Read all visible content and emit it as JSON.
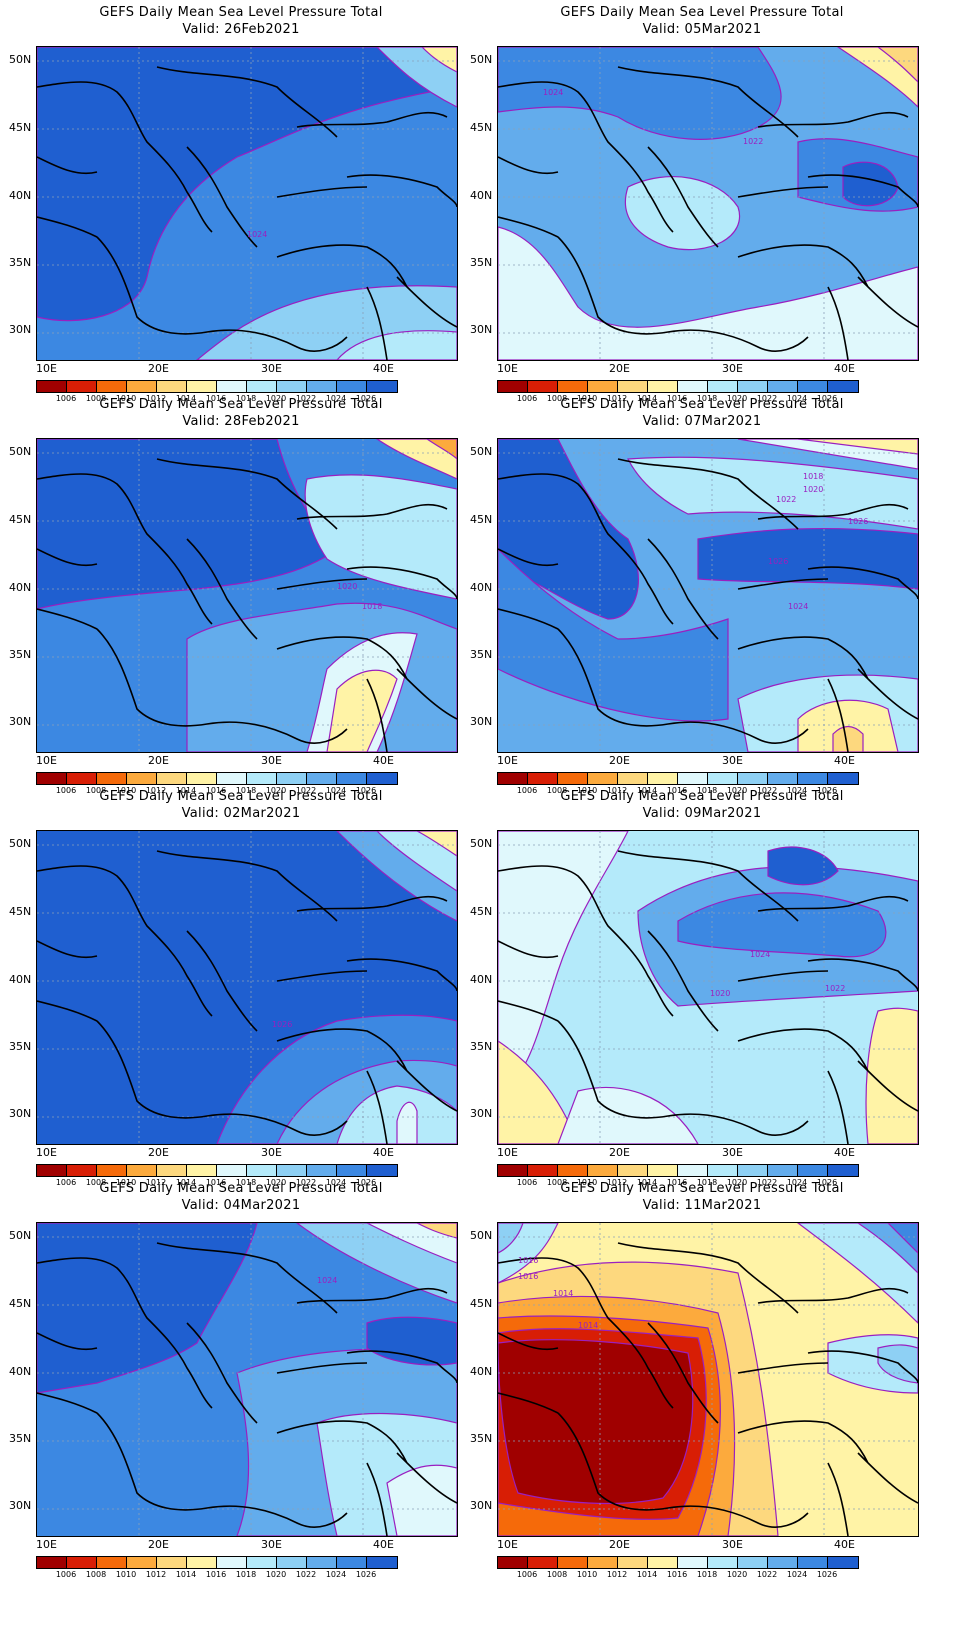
{
  "colorbar": {
    "labels": [
      "1006",
      "1008",
      "1010",
      "1012",
      "1014",
      "1016",
      "1018",
      "1020",
      "1022",
      "1024",
      "1026"
    ],
    "colors": [
      "#a00000",
      "#d81e05",
      "#f56a0a",
      "#fcaa3d",
      "#fdd87e",
      "#fff3a6",
      "#e0f8fc",
      "#b4eafa",
      "#8ed0f4",
      "#63acec",
      "#3c88e2",
      "#1f5fd0"
    ]
  },
  "axes": {
    "lon_labels": [
      "10E",
      "20E",
      "30E",
      "40E"
    ],
    "lat_labels": [
      "50N",
      "45N",
      "40N",
      "35N",
      "30N"
    ]
  },
  "panels": [
    {
      "title": "GEFS Daily Mean Sea Level Pressure Total",
      "valid": "Valid: 26Feb2021",
      "contour_labels": [
        "1024"
      ]
    },
    {
      "title": "GEFS Daily Mean Sea Level Pressure Total",
      "valid": "Valid: 05Mar2021",
      "contour_labels": [
        "1024",
        "1022"
      ]
    },
    {
      "title": "GEFS Daily Mean Sea Level Pressure Total",
      "valid": "Valid: 28Feb2021",
      "contour_labels": [
        "1020",
        "1018"
      ]
    },
    {
      "title": "GEFS Daily Mean Sea Level Pressure Total",
      "valid": "Valid: 07Mar2021",
      "contour_labels": [
        "1018",
        "1020",
        "1022",
        "1026",
        "1026",
        "1024"
      ]
    },
    {
      "title": "GEFS Daily Mean Sea Level Pressure Total",
      "valid": "Valid: 02Mar2021",
      "contour_labels": [
        "1026"
      ]
    },
    {
      "title": "GEFS Daily Mean Sea Level Pressure Total",
      "valid": "Valid: 09Mar2021",
      "contour_labels": [
        "1024",
        "1020",
        "1022"
      ]
    },
    {
      "title": "GEFS Daily Mean Sea Level Pressure Total",
      "valid": "Valid: 04Mar2021",
      "contour_labels": [
        "1024"
      ]
    },
    {
      "title": "GEFS Daily Mean Sea Level Pressure Total",
      "valid": "Valid: 11Mar2021",
      "contour_labels": [
        "1016",
        "1016",
        "1014",
        "1014"
      ]
    }
  ]
}
